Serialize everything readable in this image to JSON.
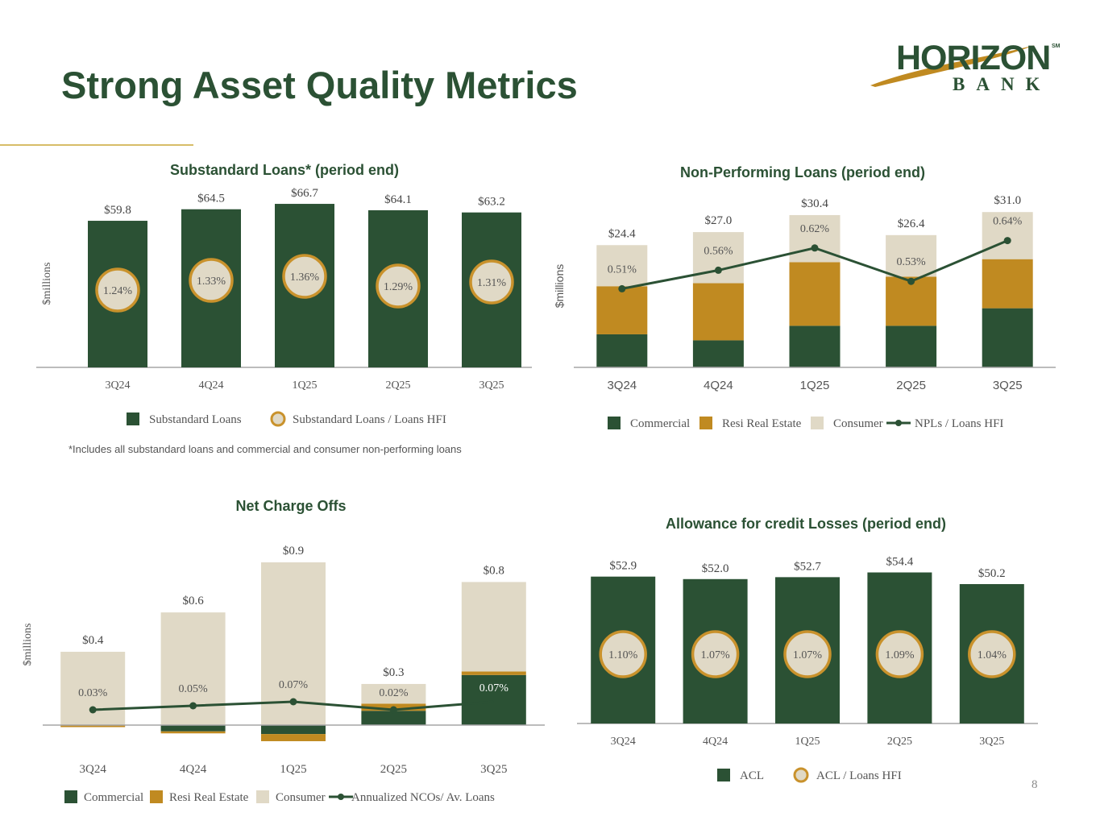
{
  "page": {
    "title": "Strong Asset Quality Metrics",
    "page_number": "8",
    "footnote": "*Includes all substandard loans and commercial and consumer non-performing loans",
    "logo": {
      "word": "HORIZON",
      "sub": "BANK",
      "mark": "SM"
    }
  },
  "colors": {
    "green": "#2b5134",
    "gold": "#c08a21",
    "beige": "#e0d9c6",
    "ring": "#c9922c",
    "axis": "#a6a6a6",
    "text": "#555555"
  },
  "chart_data": [
    {
      "id": "substandard",
      "type": "bar",
      "title": "Substandard Loans* (period end)",
      "ylabel": "$millions",
      "categories": [
        "3Q24",
        "4Q24",
        "1Q25",
        "2Q25",
        "3Q25"
      ],
      "series": [
        {
          "name": "Substandard Loans",
          "values": [
            59.8,
            64.5,
            66.7,
            64.1,
            63.2
          ]
        }
      ],
      "value_labels": [
        "$59.8",
        "$64.5",
        "$66.7",
        "$64.1",
        "$63.2"
      ],
      "ratio": {
        "name": "Substandard Loans / Loans HFI",
        "labels": [
          "1.24%",
          "1.33%",
          "1.36%",
          "1.29%",
          "1.31%"
        ]
      },
      "ylim": [
        0,
        70
      ],
      "legend": [
        {
          "label": "Substandard Loans",
          "kind": "square",
          "color": "#2b5134"
        },
        {
          "label": "Substandard Loans / Loans HFI",
          "kind": "ring",
          "color": "#c9922c"
        }
      ]
    },
    {
      "id": "npl",
      "type": "bar",
      "title": "Non-Performing Loans (period end)",
      "ylabel": "$millions",
      "categories": [
        "3Q24",
        "4Q24",
        "1Q25",
        "2Q25",
        "3Q25"
      ],
      "series": [
        {
          "name": "Commercial",
          "values": [
            6.6,
            5.4,
            8.3,
            8.3,
            11.8
          ]
        },
        {
          "name": "Resi Real Estate",
          "values": [
            9.6,
            11.4,
            12.7,
            9.8,
            9.8
          ]
        },
        {
          "name": "Consumer",
          "values": [
            8.2,
            10.2,
            9.4,
            8.3,
            9.4
          ]
        }
      ],
      "totals": [
        "$24.4",
        "$27.0",
        "$30.4",
        "$26.4",
        "$31.0"
      ],
      "ratio": {
        "name": "NPLs / Loans HFI",
        "values": [
          0.51,
          0.56,
          0.62,
          0.53,
          0.64
        ],
        "labels": [
          "0.51%",
          "0.56%",
          "0.62%",
          "0.53%",
          "0.64%"
        ]
      },
      "ylim": [
        0,
        32
      ],
      "legend": [
        {
          "label": "Commercial",
          "kind": "square",
          "color": "#2b5134"
        },
        {
          "label": "Resi Real Estate",
          "kind": "square",
          "color": "#c08a21"
        },
        {
          "label": "Consumer",
          "kind": "square",
          "color": "#e0d9c6"
        },
        {
          "label": "NPLs / Loans HFI",
          "kind": "line",
          "color": "#2b5134"
        }
      ]
    },
    {
      "id": "nco",
      "type": "bar",
      "title": "Net Charge Offs",
      "ylabel": "$millions",
      "categories": [
        "3Q24",
        "4Q24",
        "1Q25",
        "2Q25",
        "3Q25"
      ],
      "series": [
        {
          "name": "Commercial",
          "values": [
            0.0,
            -0.035,
            -0.05,
            0.08,
            0.28
          ]
        },
        {
          "name": "Resi Real Estate",
          "values": [
            -0.01,
            -0.01,
            -0.04,
            0.04,
            0.02
          ]
        },
        {
          "name": "Consumer",
          "values": [
            0.41,
            0.63,
            0.91,
            0.11,
            0.5
          ]
        }
      ],
      "totals": [
        "$0.4",
        "$0.6",
        "$0.9",
        "$0.3",
        "$0.8"
      ],
      "ratio": {
        "name": "Annualized NCOs/ Av. Loans",
        "values": [
          0.03,
          0.05,
          0.07,
          0.02,
          0.07
        ],
        "labels": [
          "0.03%",
          "0.05%",
          "0.07%",
          "0.02%",
          "0.07%"
        ]
      },
      "ylim": [
        -0.1,
        0.9
      ],
      "legend": [
        {
          "label": "Commercial",
          "kind": "square",
          "color": "#2b5134"
        },
        {
          "label": "Resi Real Estate",
          "kind": "square",
          "color": "#c08a21"
        },
        {
          "label": "Consumer",
          "kind": "square",
          "color": "#e0d9c6"
        },
        {
          "label": "Annualized NCOs/ Av. Loans",
          "kind": "line",
          "color": "#2b5134"
        }
      ]
    },
    {
      "id": "acl",
      "type": "bar",
      "title": "Allowance for credit Losses (period end)",
      "categories": [
        "3Q24",
        "4Q24",
        "1Q25",
        "2Q25",
        "3Q25"
      ],
      "series": [
        {
          "name": "ACL",
          "values": [
            52.9,
            52.0,
            52.7,
            54.4,
            50.2
          ]
        }
      ],
      "value_labels": [
        "$52.9",
        "$52.0",
        "$52.7",
        "$54.4",
        "$50.2"
      ],
      "ratio": {
        "name": "ACL / Loans HFI",
        "labels": [
          "1.10%",
          "1.07%",
          "1.07%",
          "1.09%",
          "1.04%"
        ]
      },
      "ylim": [
        0,
        56
      ],
      "legend": [
        {
          "label": "ACL",
          "kind": "square",
          "color": "#2b5134"
        },
        {
          "label": "ACL / Loans HFI",
          "kind": "ring",
          "color": "#c9922c"
        }
      ]
    }
  ]
}
